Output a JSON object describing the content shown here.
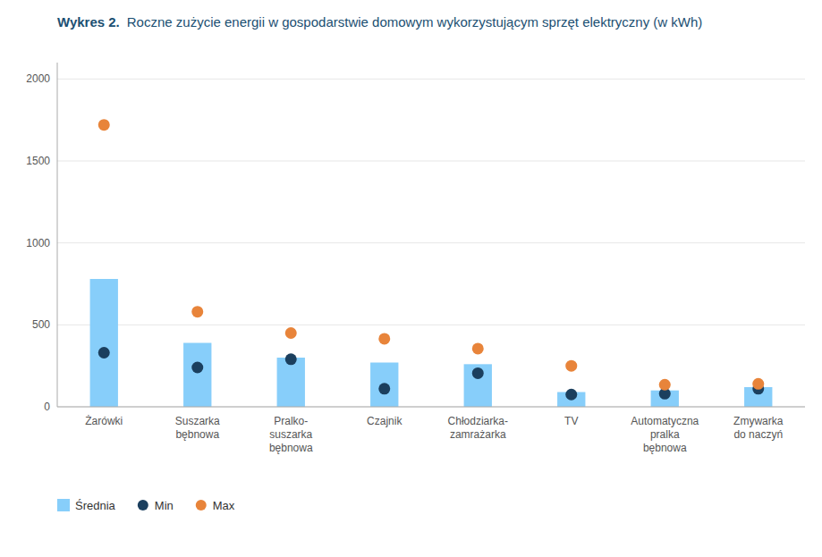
{
  "chart_data": {
    "type": "bar",
    "title": "Wykres 2.",
    "subtitle": "Roczne zużycie energii w gospodarstwie domowym wykorzystującym sprzęt elektryczny (w kWh)",
    "categories": [
      "Żarówki",
      "Suszarka\nbębnowa",
      "Pralko-\nsuszarka\nbębnowa",
      "Czajnik",
      "Chłodziarka-\nzamrażarka",
      "TV",
      "Automatyczna\npralka\nbębnowa",
      "Zmywarka\ndo naczyń"
    ],
    "series": [
      {
        "name": "Średnia",
        "type": "bar",
        "color": "#87CEFA",
        "values": [
          780,
          390,
          300,
          270,
          260,
          90,
          100,
          120
        ]
      },
      {
        "name": "Min",
        "type": "scatter",
        "color": "#1B3F5E",
        "values": [
          330,
          240,
          290,
          110,
          205,
          75,
          80,
          110
        ]
      },
      {
        "name": "Max",
        "type": "scatter",
        "color": "#E8843A",
        "values": [
          1720,
          580,
          450,
          415,
          355,
          250,
          135,
          140
        ]
      }
    ],
    "ylim": [
      0,
      2100
    ],
    "yticks": [
      0,
      500,
      1000,
      1500,
      2000
    ],
    "grid": true,
    "legend": "bottom"
  }
}
